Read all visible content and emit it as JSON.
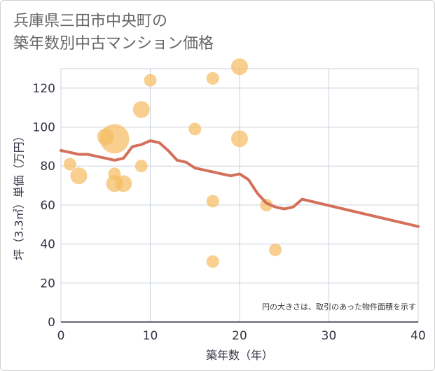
{
  "title_lines": [
    "兵庫県三田市中央町の",
    "築年数別中古マンション価格"
  ],
  "chart_data": {
    "type": "scatter",
    "xlabel": "築年数（年）",
    "ylabel": "坪（3.3㎡）単価（万円）",
    "xlim": [
      0,
      40
    ],
    "ylim": [
      0,
      130
    ],
    "x_ticks": [
      0,
      10,
      20,
      30,
      40
    ],
    "y_ticks": [
      0,
      20,
      40,
      60,
      80,
      100,
      120
    ],
    "grid": true,
    "note": "円の大きさは、取引のあった物件面積を示す",
    "bubble_color": "#f5bc62",
    "line_color": "#d4705a",
    "scatter_points": [
      {
        "x": 1,
        "y": 81,
        "size": 1
      },
      {
        "x": 2,
        "y": 75,
        "size": 2
      },
      {
        "x": 5,
        "y": 95,
        "size": 2
      },
      {
        "x": 6,
        "y": 94,
        "size": 5
      },
      {
        "x": 6,
        "y": 76,
        "size": 1
      },
      {
        "x": 6,
        "y": 71,
        "size": 2
      },
      {
        "x": 7,
        "y": 71,
        "size": 2
      },
      {
        "x": 9,
        "y": 109,
        "size": 2
      },
      {
        "x": 9,
        "y": 80,
        "size": 1
      },
      {
        "x": 10,
        "y": 124,
        "size": 1
      },
      {
        "x": 15,
        "y": 99,
        "size": 1
      },
      {
        "x": 17,
        "y": 125,
        "size": 1
      },
      {
        "x": 17,
        "y": 62,
        "size": 1
      },
      {
        "x": 17,
        "y": 31,
        "size": 1
      },
      {
        "x": 20,
        "y": 131,
        "size": 2
      },
      {
        "x": 20,
        "y": 94,
        "size": 2
      },
      {
        "x": 23,
        "y": 60,
        "size": 1
      },
      {
        "x": 24,
        "y": 37,
        "size": 1
      }
    ],
    "trend_line": {
      "x": [
        0,
        1,
        2,
        3,
        4,
        5,
        6,
        7,
        8,
        9,
        10,
        11,
        12,
        13,
        14,
        15,
        16,
        17,
        18,
        19,
        20,
        21,
        22,
        23,
        24,
        25,
        26,
        27,
        40
      ],
      "y": [
        88,
        87,
        86,
        86,
        85,
        84,
        83,
        84,
        90,
        91,
        93,
        92,
        88,
        83,
        82,
        79,
        78,
        77,
        76,
        75,
        76,
        73,
        66,
        61,
        59,
        58,
        59,
        63,
        49
      ]
    }
  }
}
